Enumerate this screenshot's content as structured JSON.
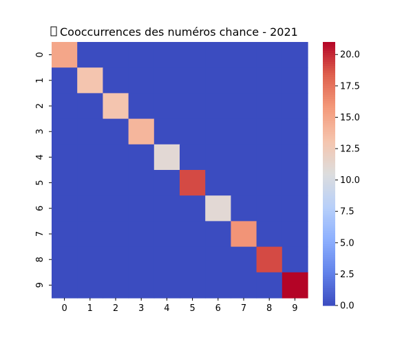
{
  "chart_data": {
    "type": "heatmap",
    "title": "Cooccurrences des numéros chance - 2021",
    "title_icon": "missing-glyph-box",
    "xlabel": "",
    "ylabel": "",
    "x_categories": [
      "0",
      "1",
      "2",
      "3",
      "4",
      "5",
      "6",
      "7",
      "8",
      "9"
    ],
    "y_categories": [
      "0",
      "1",
      "2",
      "3",
      "4",
      "5",
      "6",
      "7",
      "8",
      "9"
    ],
    "values": [
      [
        15,
        0,
        0,
        0,
        0,
        0,
        0,
        0,
        0,
        0
      ],
      [
        0,
        13,
        0,
        0,
        0,
        0,
        0,
        0,
        0,
        0
      ],
      [
        0,
        0,
        13,
        0,
        0,
        0,
        0,
        0,
        0,
        0
      ],
      [
        0,
        0,
        0,
        14,
        0,
        0,
        0,
        0,
        0,
        0
      ],
      [
        0,
        0,
        0,
        0,
        11,
        0,
        0,
        0,
        0,
        0
      ],
      [
        0,
        0,
        0,
        0,
        0,
        19,
        0,
        0,
        0,
        0
      ],
      [
        0,
        0,
        0,
        0,
        0,
        0,
        11,
        0,
        0,
        0
      ],
      [
        0,
        0,
        0,
        0,
        0,
        0,
        0,
        16,
        0,
        0
      ],
      [
        0,
        0,
        0,
        0,
        0,
        0,
        0,
        0,
        19,
        0
      ],
      [
        0,
        0,
        0,
        0,
        0,
        0,
        0,
        0,
        0,
        21
      ]
    ],
    "colormap": "coolwarm",
    "colorbar": {
      "min": 0,
      "max": 21,
      "ticks": [
        0.0,
        2.5,
        5.0,
        7.5,
        10.0,
        12.5,
        15.0,
        17.5,
        20.0
      ],
      "tick_labels": [
        "0.0",
        "2.5",
        "5.0",
        "7.5",
        "10.0",
        "12.5",
        "15.0",
        "17.5",
        "20.0"
      ]
    }
  }
}
